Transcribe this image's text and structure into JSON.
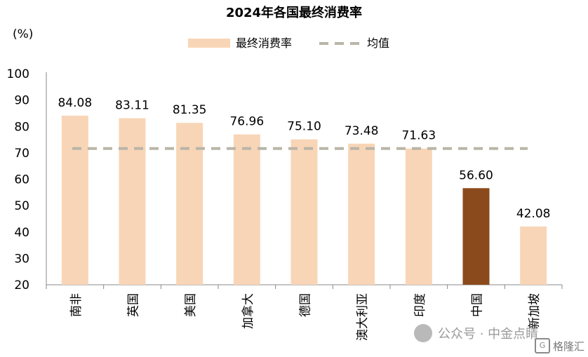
{
  "chart_data": {
    "type": "bar",
    "title": "2024年各国最终消费率",
    "ylabel": "(%)",
    "ylim": [
      20,
      100
    ],
    "yticks": [
      20,
      30,
      40,
      50,
      60,
      70,
      80,
      90,
      100
    ],
    "categories": [
      "南非",
      "英国",
      "美国",
      "加拿大",
      "德国",
      "澳大利亚",
      "印度",
      "中国",
      "新加坡"
    ],
    "values": [
      84.08,
      83.11,
      81.35,
      76.96,
      75.1,
      73.48,
      71.63,
      56.6,
      42.08
    ],
    "value_labels": [
      "84.08",
      "83.11",
      "81.35",
      "76.96",
      "75.10",
      "73.48",
      "71.63",
      "56.60",
      "42.08"
    ],
    "average_line": {
      "name": "均值",
      "value": 71.63,
      "style": "dashed"
    },
    "legend": {
      "position": "top-center",
      "bar_label": "最终消费率",
      "line_label": "均值"
    },
    "highlight_category": "中国",
    "colors": {
      "bar": "#f8d5b7",
      "highlight": "#8b4a1c",
      "average": "#b9b5a8"
    },
    "grid": false
  },
  "watermark": {
    "text": "公众号 · 中金点睛",
    "brand": "格隆汇",
    "brand_icon": "G"
  }
}
